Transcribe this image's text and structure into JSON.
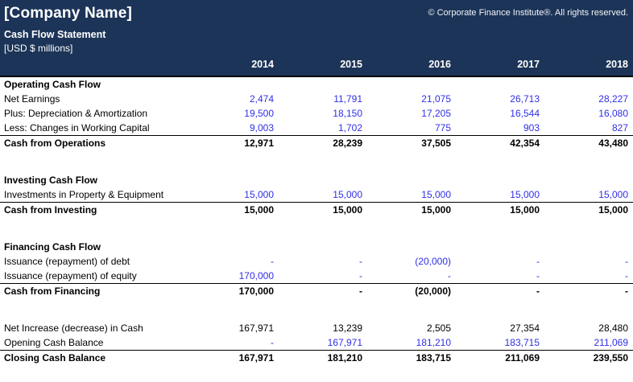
{
  "header": {
    "company_name": "[Company Name]",
    "copyright": "© Corporate Finance Institute®. All rights reserved.",
    "statement_title": "Cash Flow Statement",
    "units": "[USD $ millions]",
    "years": [
      "2014",
      "2015",
      "2016",
      "2017",
      "2018"
    ]
  },
  "colors": {
    "header_bg": "#1C3457",
    "input_value_blue": "#2F2FE8",
    "total_text": "#000000",
    "body_bg": "#FFFFFF"
  },
  "sections": [
    {
      "title": "Operating Cash Flow",
      "rows": [
        {
          "label": "Net Earnings",
          "style": "input",
          "values": [
            "2,474",
            "11,791",
            "21,075",
            "26,713",
            "28,227"
          ]
        },
        {
          "label": "Plus: Depreciation & Amortization",
          "style": "input",
          "values": [
            "19,500",
            "18,150",
            "17,205",
            "16,544",
            "16,080"
          ]
        },
        {
          "label": "Less: Changes in Working Capital",
          "style": "input",
          "values": [
            "9,003",
            "1,702",
            "775",
            "903",
            "827"
          ]
        }
      ],
      "total": {
        "label": "Cash from Operations",
        "values": [
          "12,971",
          "28,239",
          "37,505",
          "42,354",
          "43,480"
        ]
      }
    },
    {
      "title": "Investing Cash Flow",
      "rows": [
        {
          "label": "Investments in Property & Equipment",
          "style": "input",
          "values": [
            "15,000",
            "15,000",
            "15,000",
            "15,000",
            "15,000"
          ]
        }
      ],
      "total": {
        "label": "Cash from Investing",
        "values": [
          "15,000",
          "15,000",
          "15,000",
          "15,000",
          "15,000"
        ]
      }
    },
    {
      "title": "Financing Cash Flow",
      "rows": [
        {
          "label": "Issuance (repayment) of debt",
          "style": "input",
          "values": [
            "-",
            "-",
            "(20,000)",
            "-",
            "-"
          ]
        },
        {
          "label": "Issuance (repayment) of equity",
          "style": "input",
          "values": [
            "170,000",
            "-",
            "-",
            "-",
            "-"
          ]
        }
      ],
      "total": {
        "label": "Cash from Financing",
        "values": [
          "170,000",
          "-",
          "(20,000)",
          "-",
          "-"
        ]
      }
    },
    {
      "title": null,
      "rows": [
        {
          "label": "Net Increase (decrease) in Cash",
          "style": "calc",
          "values": [
            "167,971",
            "13,239",
            "2,505",
            "27,354",
            "28,480"
          ]
        },
        {
          "label": "Opening Cash Balance",
          "style": "input",
          "values": [
            "-",
            "167,971",
            "181,210",
            "183,715",
            "211,069"
          ]
        }
      ],
      "total": {
        "label": "Closing Cash Balance",
        "values": [
          "167,971",
          "181,210",
          "183,715",
          "211,069",
          "239,550"
        ]
      }
    }
  ]
}
